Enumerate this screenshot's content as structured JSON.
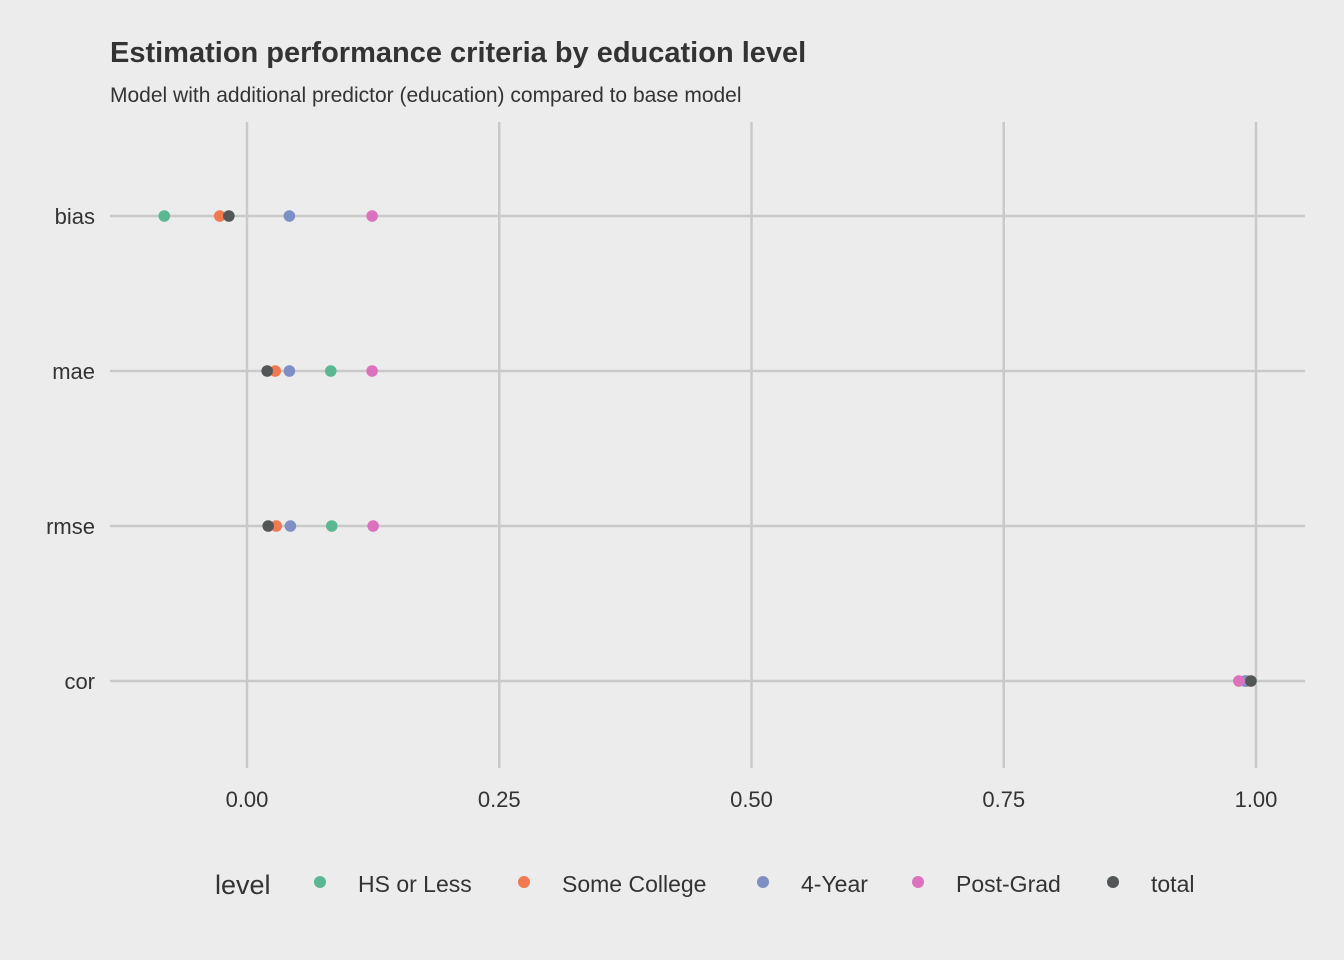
{
  "chart_data": {
    "type": "scatter",
    "title": "Estimation performance criteria by education level",
    "subtitle": "Model with additional predictor (education) compared to base model",
    "xlabel": "",
    "ylabel": "",
    "xlim": [
      -0.135,
      1.05
    ],
    "x_ticks": [
      0.0,
      0.25,
      0.5,
      0.75,
      1.0
    ],
    "x_tick_labels": [
      "0.00",
      "0.25",
      "0.50",
      "0.75",
      "1.00"
    ],
    "categories": [
      "bias",
      "mae",
      "rmse",
      "cor"
    ],
    "grid": true,
    "legend_position": "bottom",
    "legend_title": "level",
    "series": [
      {
        "name": "HS or Less",
        "color": "#5bb792",
        "values": [
          -0.082,
          0.083,
          0.084,
          0.99
        ]
      },
      {
        "name": "Some College",
        "color": "#f0794f",
        "values": [
          -0.027,
          0.028,
          0.029,
          0.991
        ]
      },
      {
        "name": "4-Year",
        "color": "#7f8fc4",
        "values": [
          0.042,
          0.042,
          0.043,
          0.989
        ]
      },
      {
        "name": "Post-Grad",
        "color": "#dc72bd",
        "values": [
          0.124,
          0.124,
          0.125,
          0.983
        ]
      },
      {
        "name": "total",
        "color": "#535656",
        "values": [
          -0.018,
          0.02,
          0.021,
          0.995
        ]
      }
    ]
  }
}
